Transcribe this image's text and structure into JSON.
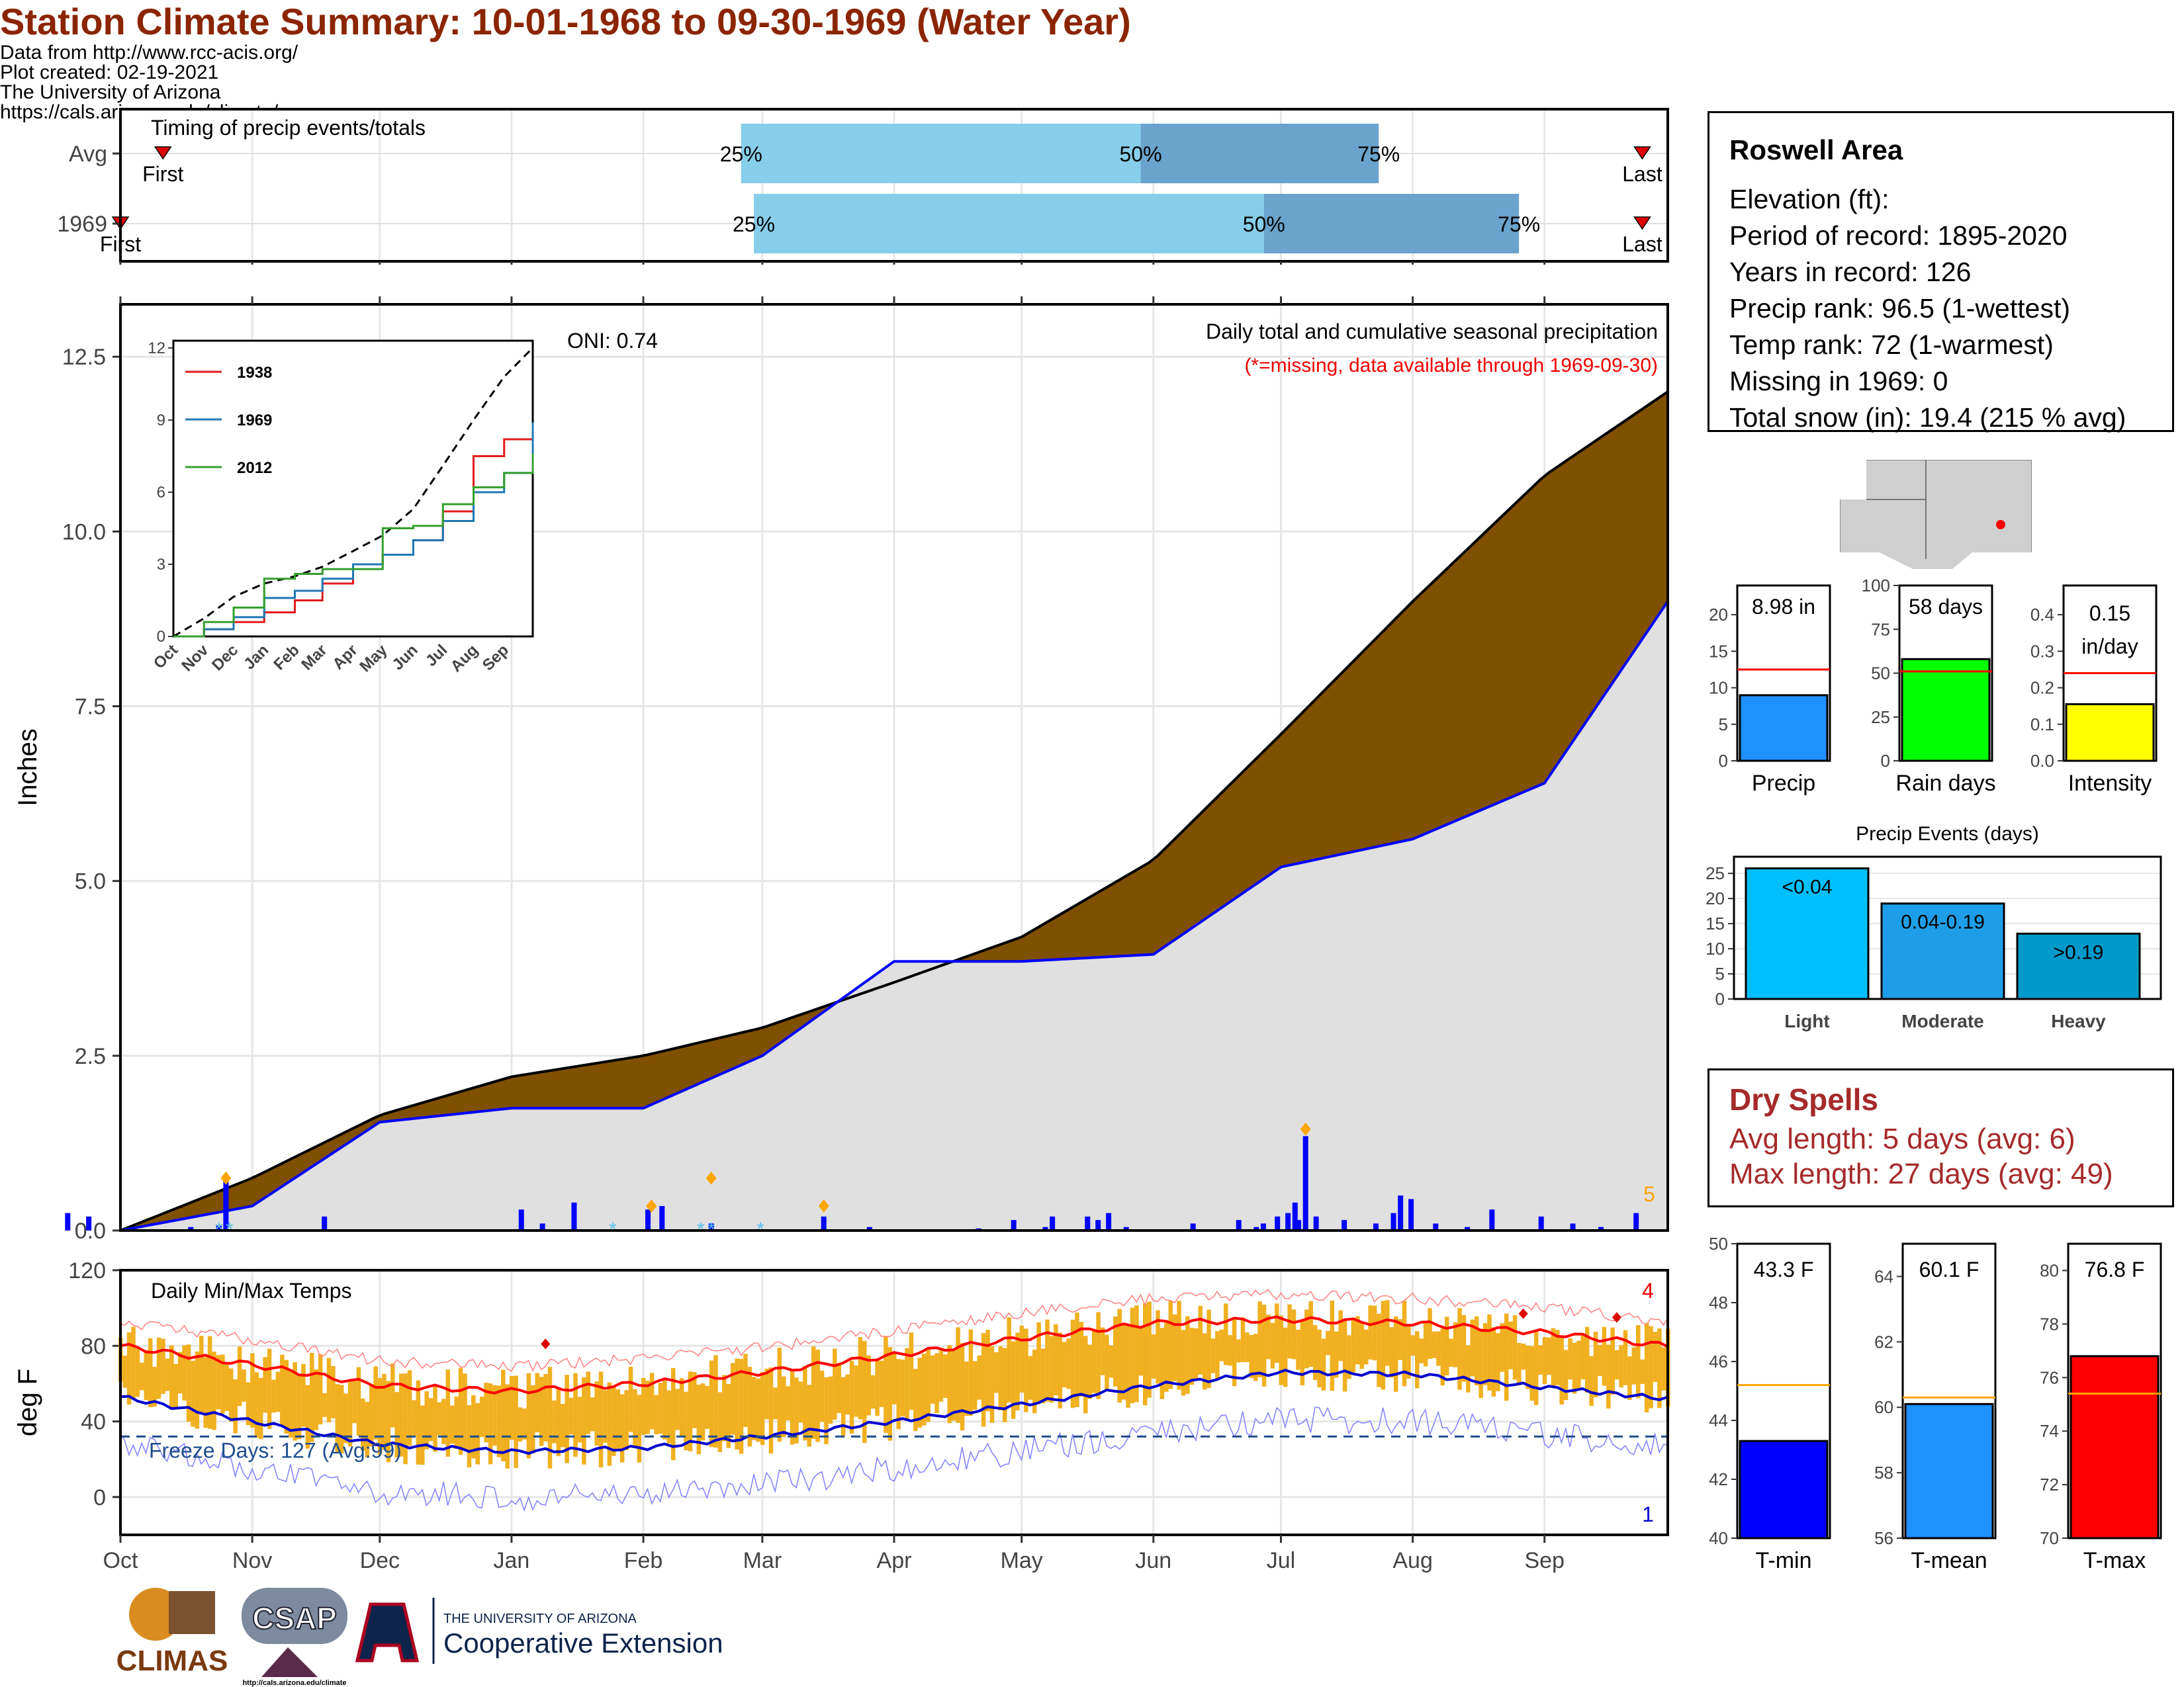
{
  "title": "Station Climate Summary: 10-01-1968 to 09-30-1969 (Water Year)",
  "colors": {
    "title": "#8b2500",
    "cumulative_fill": "#7f5000",
    "precip_blue": "#0000ff",
    "tmax": "#ff0000",
    "tmin": "#0000cd",
    "range_bar": "#f0b020",
    "light_blue": "#87ceeb",
    "mid_blue": "#6aa3cc"
  },
  "timing": {
    "label": "Timing of precip events/totals",
    "rows": [
      {
        "name": "Avg",
        "first_label": "First",
        "last_label": "Last",
        "p25_label": "25%",
        "p50_label": "50%",
        "p75_label": "75%",
        "first_day": 10,
        "p25_day": 146,
        "p50_day": 240,
        "p75_day": 296,
        "last_day": 358
      },
      {
        "name": "1969",
        "first_label": "First",
        "last_label": "Last",
        "p25_label": "25%",
        "p50_label": "50%",
        "p75_label": "75%",
        "first_day": 0,
        "p25_day": 149,
        "p50_day": 269,
        "p75_day": 329,
        "last_day": 358
      }
    ]
  },
  "main": {
    "ylabel": "Inches",
    "legend_title": "Daily total and cumulative seasonal precipitation",
    "legend_note": "(*=missing, data available through 1969-09-30)",
    "oni": "ONI: 0.74",
    "count_label": "5",
    "ticks": [
      "0.0",
      "2.5",
      "5.0",
      "7.5",
      "10.0",
      "12.5"
    ],
    "months": [
      "Oct",
      "Nov",
      "Dec",
      "Jan",
      "Feb",
      "Mar",
      "Apr",
      "May",
      "Jun",
      "Jul",
      "Aug",
      "Sep"
    ]
  },
  "inset": {
    "ticks": [
      "0",
      "3",
      "6",
      "9",
      "12"
    ],
    "months": [
      "Oct",
      "Nov",
      "Dec",
      "Jan",
      "Feb",
      "Mar",
      "Apr",
      "May",
      "Jun",
      "Jul",
      "Aug",
      "Sep"
    ],
    "legend": [
      {
        "name": "1938",
        "color": "#e31a1c"
      },
      {
        "name": "1969",
        "color": "#1f78b4"
      },
      {
        "name": "2012",
        "color": "#33a02c"
      }
    ]
  },
  "temps": {
    "ylabel": "deg F",
    "title": "Daily Min/Max Temps",
    "freeze_label": "Freeze Days: 127 (Avg:99)",
    "count_top": "4",
    "count_bottom": "1",
    "ticks": [
      "0",
      "40",
      "80",
      "120"
    ],
    "months": [
      "Oct",
      "Nov",
      "Dec",
      "Jan",
      "Feb",
      "Mar",
      "Apr",
      "May",
      "Jun",
      "Jul",
      "Aug",
      "Sep"
    ]
  },
  "info": {
    "station": "Roswell Area",
    "lines": [
      "Elevation (ft):",
      "Period of record: 1895-2020",
      "Years in record: 126",
      "Precip rank: 96.5 (1-wettest)",
      "Temp rank: 72 (1-warmest)",
      "Missing in 1969: 0",
      "Total snow (in): 19.4 (215 % avg)"
    ]
  },
  "bars_precip": [
    {
      "label": "Precip",
      "value_label": "8.98 in",
      "value": 8.98,
      "avg": 12.5,
      "ymax": 24,
      "ticks": [
        "0",
        "5",
        "10",
        "15",
        "20"
      ],
      "color": "#1e90ff"
    },
    {
      "label": "Rain days",
      "value_label": "58 days",
      "value": 58,
      "avg": 51,
      "ymax": 100,
      "ticks": [
        "0",
        "25",
        "50",
        "75",
        "100"
      ],
      "color": "#00ff00"
    },
    {
      "label": "Intensity",
      "value_label": "0.15 in/day",
      "value": 0.155,
      "avg": 0.24,
      "ymax": 0.48,
      "ticks": [
        "0.0",
        "0.1",
        "0.2",
        "0.3",
        "0.4"
      ],
      "color": "#ffff00"
    }
  ],
  "events": {
    "title": "Precip Events (days)",
    "ticks": [
      "0",
      "5",
      "10",
      "15",
      "20",
      "25"
    ],
    "bars": [
      {
        "label": "Light",
        "value_label": "<0.04",
        "value": 26,
        "color": "#00bfff"
      },
      {
        "label": "Moderate",
        "value_label": "0.04-0.19",
        "value": 19,
        "color": "#1e9ee8"
      },
      {
        "label": "Heavy",
        "value_label": ">0.19",
        "value": 13,
        "color": "#0099cc"
      }
    ]
  },
  "dry": {
    "title": "Dry Spells",
    "avg": "Avg length: 5 days (avg: 6)",
    "max": "Max length: 27 days (avg: 49)"
  },
  "bars_temp": [
    {
      "label": "T-min",
      "value_label": "43.3 F",
      "value": 43.3,
      "avg": 45.2,
      "min": 40,
      "max": 50,
      "ticks": [
        "40",
        "42",
        "44",
        "46",
        "48",
        "50"
      ],
      "color": "#0000ff"
    },
    {
      "label": "T-mean",
      "value_label": "60.1 F",
      "value": 60.1,
      "avg": 60.3,
      "min": 56,
      "max": 65,
      "ticks": [
        "56",
        "58",
        "60",
        "62",
        "64"
      ],
      "color": "#1e90ff"
    },
    {
      "label": "T-max",
      "value_label": "76.8 F",
      "value": 76.8,
      "avg": 75.4,
      "min": 70,
      "max": 81,
      "ticks": [
        "70",
        "72",
        "74",
        "76",
        "78",
        "80"
      ],
      "color": "#ff0000"
    }
  ],
  "credits": "Data from http://www.rcc-acis.org/\nPlot created: 02-19-2021\nThe University of Arizona\nhttps://cals.arizona.edu/climate/",
  "logos": {
    "climas": "CLIMAS",
    "csap": "CSAP",
    "ua_line1": "THE UNIVERSITY OF ARIZONA",
    "ua_line2": "Cooperative Extension",
    "csap_url": "http://cals.arizona.edu/climate"
  },
  "chart_data": [
    {
      "type": "area",
      "title": "Daily total and cumulative seasonal precipitation",
      "xlabel": "",
      "ylabel": "Inches",
      "ylim": [
        0,
        13.2
      ],
      "x": [
        "Oct 1",
        "Nov 1",
        "Dec 1",
        "Jan 1",
        "Feb 1",
        "Mar 1",
        "Apr 1",
        "May 1",
        "Jun 1",
        "Jul 1",
        "Aug 1",
        "Sep 1",
        "Sep 30"
      ],
      "series": [
        {
          "name": "Avg cumulative",
          "values": [
            0,
            0.75,
            1.65,
            2.2,
            2.5,
            2.9,
            3.55,
            4.2,
            5.3,
            7.1,
            9.0,
            10.8,
            12.0
          ]
        },
        {
          "name": "1969 cumulative",
          "values": [
            0,
            0.35,
            1.55,
            1.75,
            1.75,
            2.5,
            3.85,
            3.85,
            3.95,
            5.2,
            5.6,
            6.4,
            9.0
          ]
        }
      ]
    },
    {
      "type": "line",
      "title": "Daily Min/Max Temps",
      "ylabel": "deg F",
      "ylim": [
        -20,
        120
      ],
      "x": [
        "Oct",
        "Nov",
        "Dec",
        "Jan",
        "Feb",
        "Mar",
        "Apr",
        "May",
        "Jun",
        "Jul",
        "Aug",
        "Sep",
        "Sep 30"
      ],
      "series": [
        {
          "name": "Avg max",
          "values": [
            80,
            70,
            59,
            56,
            60,
            66,
            75,
            84,
            92,
            94,
            92,
            87,
            80
          ]
        },
        {
          "name": "Avg min",
          "values": [
            53,
            40,
            28,
            24,
            26,
            32,
            40,
            49,
            59,
            66,
            65,
            58,
            52
          ]
        }
      ]
    }
  ]
}
